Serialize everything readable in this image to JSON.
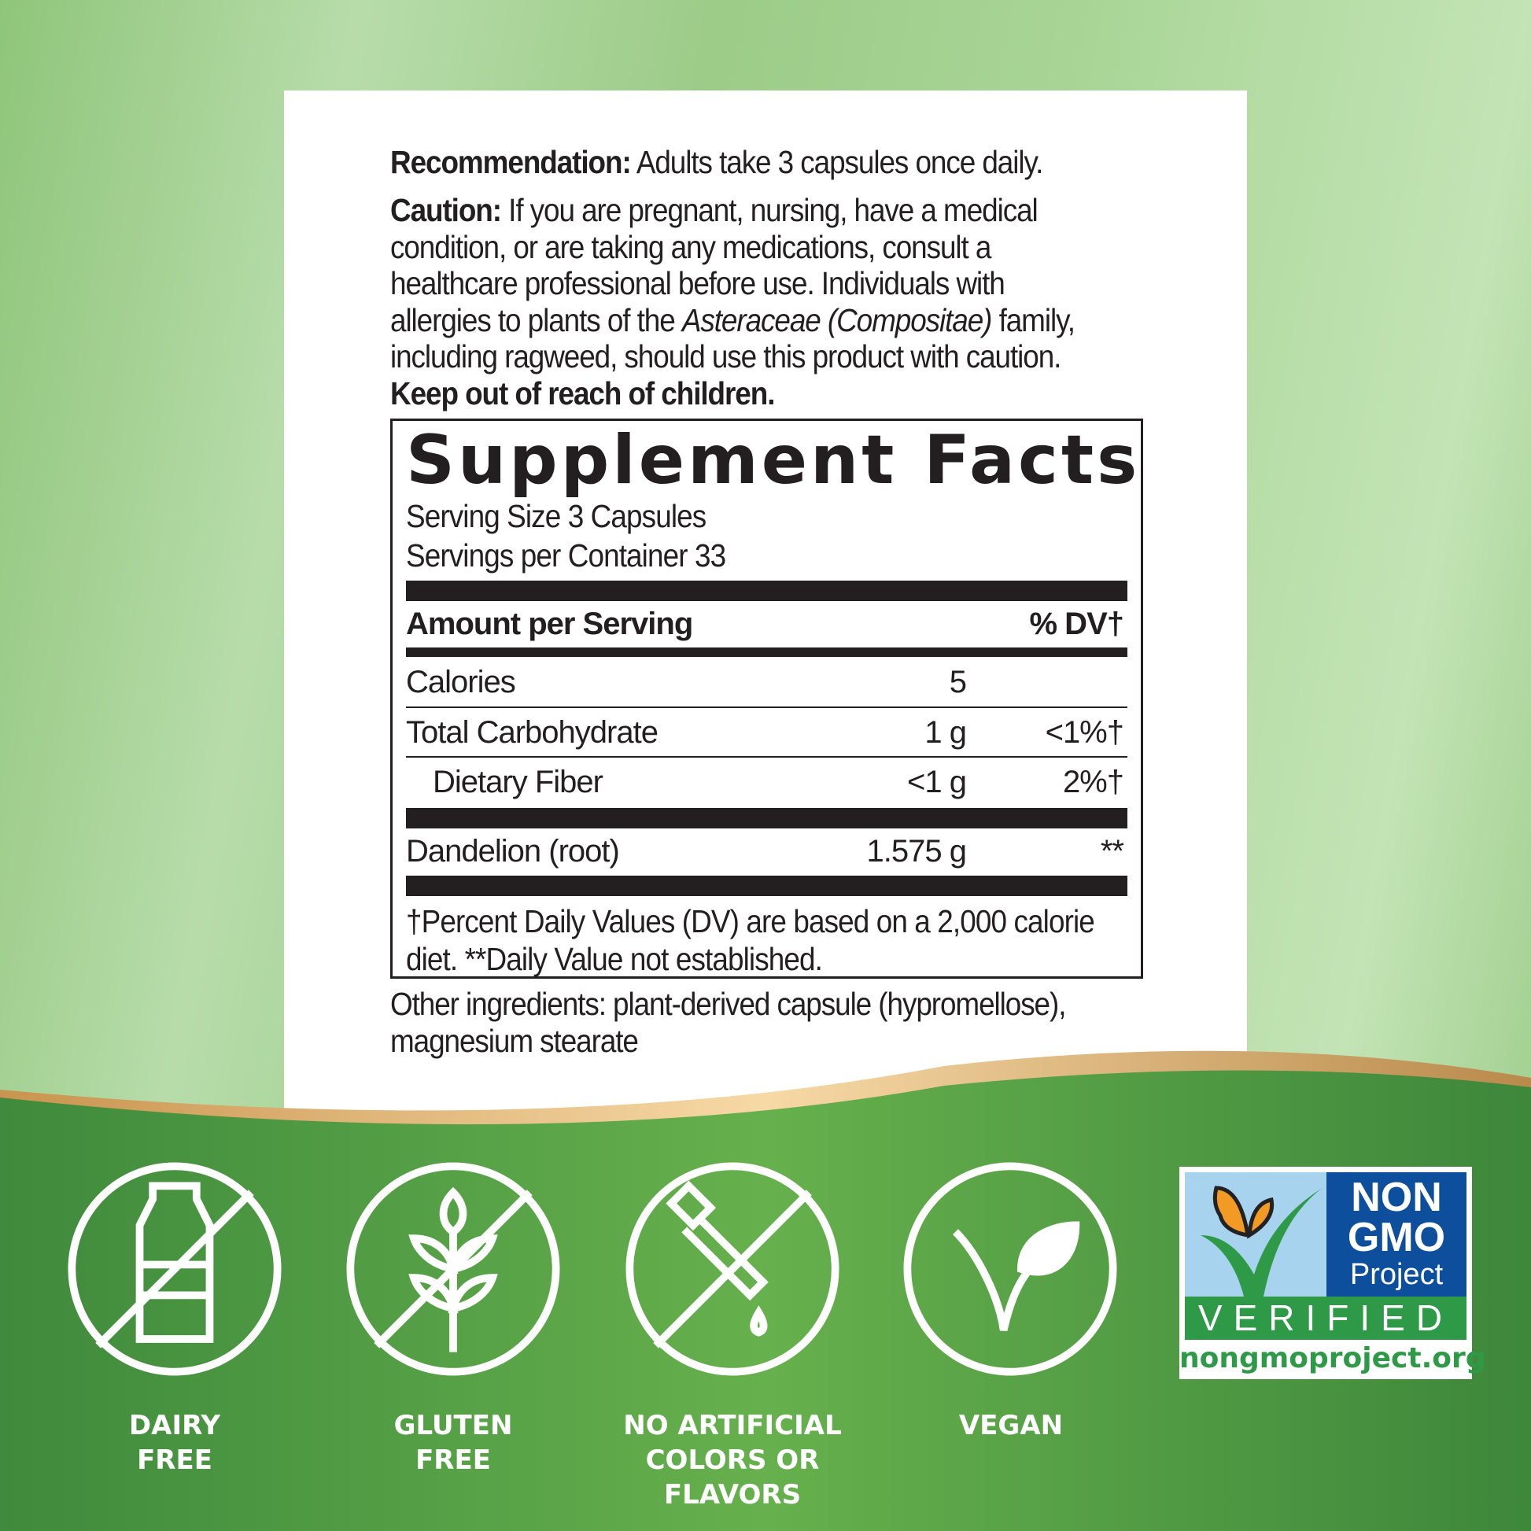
{
  "directions": {
    "recommendation_label": "Recommendation:",
    "recommendation_text": " Adults take 3 capsules once daily.",
    "caution_label": "Caution:",
    "caution_text_1": " If you are pregnant, nursing, have a medical condition, or are taking any medications, consult a healthcare professional before use. Individuals with allergies to plants of the ",
    "caution_italic": "Asteraceae (Compositae)",
    "caution_text_2": " family, including ragweed, should use this product with caution.",
    "keep_out": "Keep out of reach of children."
  },
  "supplement_facts": {
    "title": "Supplement Facts",
    "serving_size": "Serving Size 3 Capsules",
    "servings_per_container": "Servings per Container 33",
    "header_amount": "Amount per Serving",
    "header_dv": "% DV†",
    "rows": [
      {
        "name": "Calories",
        "amount": "5",
        "dv": ""
      },
      {
        "name": "Total Carbohydrate",
        "amount": "1 g",
        "dv": "<1%†"
      },
      {
        "name": "Dietary Fiber",
        "amount": "<1 g",
        "dv": "2%†"
      },
      {
        "name": "Dandelion (root)",
        "amount": "1.575 g",
        "dv": "**"
      }
    ],
    "footnote": "†Percent Daily Values (DV) are based on a 2,000 calorie diet. **Daily Value not established."
  },
  "other_ingredients": "Other ingredients: plant-derived capsule (hypromellose), magnesium stearate",
  "badges": [
    {
      "label_1": "DAIRY",
      "label_2": "FREE",
      "icon": "no-dairy-icon"
    },
    {
      "label_1": "GLUTEN",
      "label_2": "FREE",
      "icon": "no-gluten-icon"
    },
    {
      "label_1": "NO ARTIFICIAL",
      "label_2": "COLORS OR",
      "label_3": "FLAVORS",
      "icon": "no-dropper-icon"
    },
    {
      "label_1": "VEGAN",
      "icon": "leaf-icon"
    }
  ],
  "non_gmo": {
    "line1": "NON",
    "line2": "GMO",
    "line3": "Project",
    "verified": "VERIFIED",
    "url": "nongmoproject.org"
  },
  "colors": {
    "dark_green": "#3f8a3c",
    "light_green": "#a8d596",
    "gold": "#d9ad6c",
    "text": "#231f20",
    "ngmo_blue": "#0d4f9c",
    "ngmo_green": "#2e9a48",
    "ngmo_sky": "#a7d3ef"
  }
}
